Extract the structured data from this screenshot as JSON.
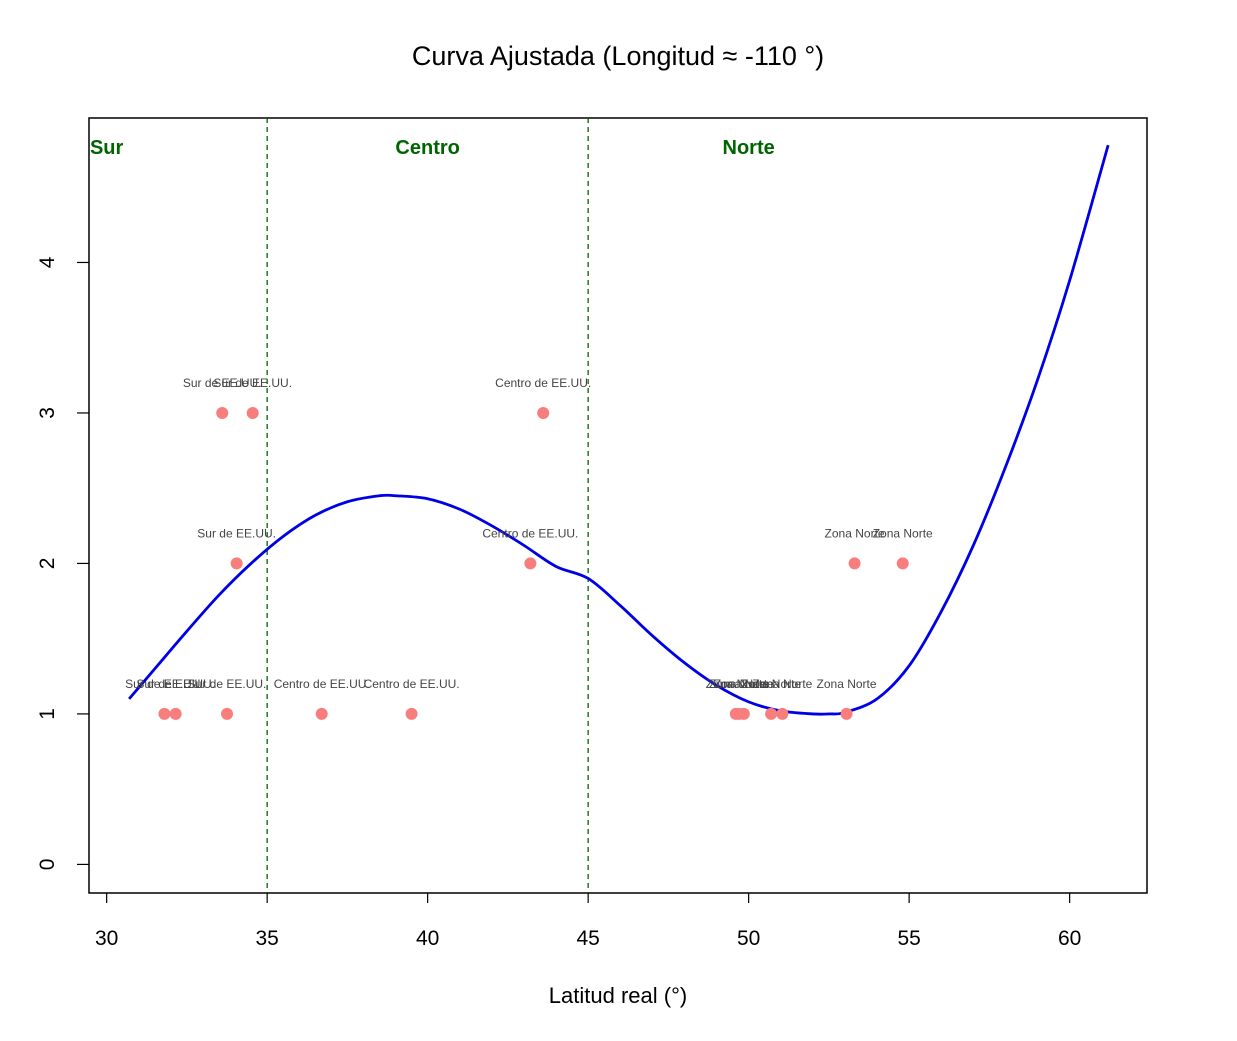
{
  "chart_data": {
    "type": "scatter",
    "title": "Curva Ajustada (Longitud ≈ -110 °)",
    "xlabel": "Latitud real (°)",
    "ylabel": "",
    "xlim": [
      29.45,
      62.41
    ],
    "ylim": [
      -0.19,
      4.96
    ],
    "x_ticks": [
      30,
      35,
      40,
      45,
      50,
      55,
      60
    ],
    "y_ticks": [
      0,
      1,
      2,
      3,
      4
    ],
    "grid": false,
    "legend": "none",
    "colors": {
      "points": "#f87d7d",
      "curve": "#0000e6",
      "dividers": "#006400",
      "region_labels": "#006400",
      "point_labels": "#444444"
    },
    "regions": [
      {
        "label": "Sur",
        "x": 30.0
      },
      {
        "label": "Centro",
        "x": 40.0
      },
      {
        "label": "Norte",
        "x": 50.0
      }
    ],
    "dividers": [
      35,
      45
    ],
    "points": [
      {
        "x": 31.8,
        "y": 1,
        "label": "Sur de EE.UU."
      },
      {
        "x": 32.15,
        "y": 1,
        "label": "Sur de EE.UU."
      },
      {
        "x": 33.75,
        "y": 1,
        "label": "Sur de EE.UU."
      },
      {
        "x": 34.05,
        "y": 2,
        "label": "Sur de EE.UU."
      },
      {
        "x": 33.6,
        "y": 3,
        "label": "Sur de EE.UU."
      },
      {
        "x": 34.55,
        "y": 3,
        "label": "Sur de EE.UU."
      },
      {
        "x": 36.7,
        "y": 1,
        "label": "Centro de EE.UU."
      },
      {
        "x": 39.5,
        "y": 1,
        "label": "Centro de EE.UU."
      },
      {
        "x": 43.2,
        "y": 2,
        "label": "Centro de EE.UU."
      },
      {
        "x": 43.6,
        "y": 3,
        "label": "Centro de EE.UU."
      },
      {
        "x": 49.6,
        "y": 1,
        "label": "Zona Norte"
      },
      {
        "x": 49.7,
        "y": 1,
        "label": "Zona Norte"
      },
      {
        "x": 49.85,
        "y": 1,
        "label": "Zona Norte"
      },
      {
        "x": 50.7,
        "y": 1,
        "label": "Zona Norte"
      },
      {
        "x": 51.05,
        "y": 1,
        "label": "Zona Norte"
      },
      {
        "x": 53.05,
        "y": 1,
        "label": "Zona Norte"
      },
      {
        "x": 53.3,
        "y": 2,
        "label": "Zona Norte"
      },
      {
        "x": 54.8,
        "y": 2,
        "label": "Zona Norte"
      }
    ],
    "curve": [
      {
        "x": 30.7,
        "y": 1.1
      },
      {
        "x": 31.5,
        "y": 1.3
      },
      {
        "x": 32.5,
        "y": 1.55
      },
      {
        "x": 33.5,
        "y": 1.79
      },
      {
        "x": 34.5,
        "y": 2.0
      },
      {
        "x": 35.5,
        "y": 2.18
      },
      {
        "x": 36.5,
        "y": 2.32
      },
      {
        "x": 37.5,
        "y": 2.41
      },
      {
        "x": 38.5,
        "y": 2.45
      },
      {
        "x": 39.0,
        "y": 2.45
      },
      {
        "x": 40.0,
        "y": 2.43
      },
      {
        "x": 41.0,
        "y": 2.36
      },
      {
        "x": 42.0,
        "y": 2.25
      },
      {
        "x": 43.0,
        "y": 2.12
      },
      {
        "x": 44.0,
        "y": 1.98
      },
      {
        "x": 45.0,
        "y": 1.9
      },
      {
        "x": 46.0,
        "y": 1.72
      },
      {
        "x": 47.0,
        "y": 1.52
      },
      {
        "x": 48.0,
        "y": 1.34
      },
      {
        "x": 49.0,
        "y": 1.19
      },
      {
        "x": 50.0,
        "y": 1.08
      },
      {
        "x": 51.0,
        "y": 1.02
      },
      {
        "x": 52.0,
        "y": 1.0
      },
      {
        "x": 52.5,
        "y": 1.0
      },
      {
        "x": 53.0,
        "y": 1.01
      },
      {
        "x": 54.0,
        "y": 1.1
      },
      {
        "x": 55.0,
        "y": 1.32
      },
      {
        "x": 56.0,
        "y": 1.68
      },
      {
        "x": 57.0,
        "y": 2.12
      },
      {
        "x": 58.0,
        "y": 2.64
      },
      {
        "x": 59.0,
        "y": 3.22
      },
      {
        "x": 60.0,
        "y": 3.88
      },
      {
        "x": 61.2,
        "y": 4.78
      }
    ]
  }
}
